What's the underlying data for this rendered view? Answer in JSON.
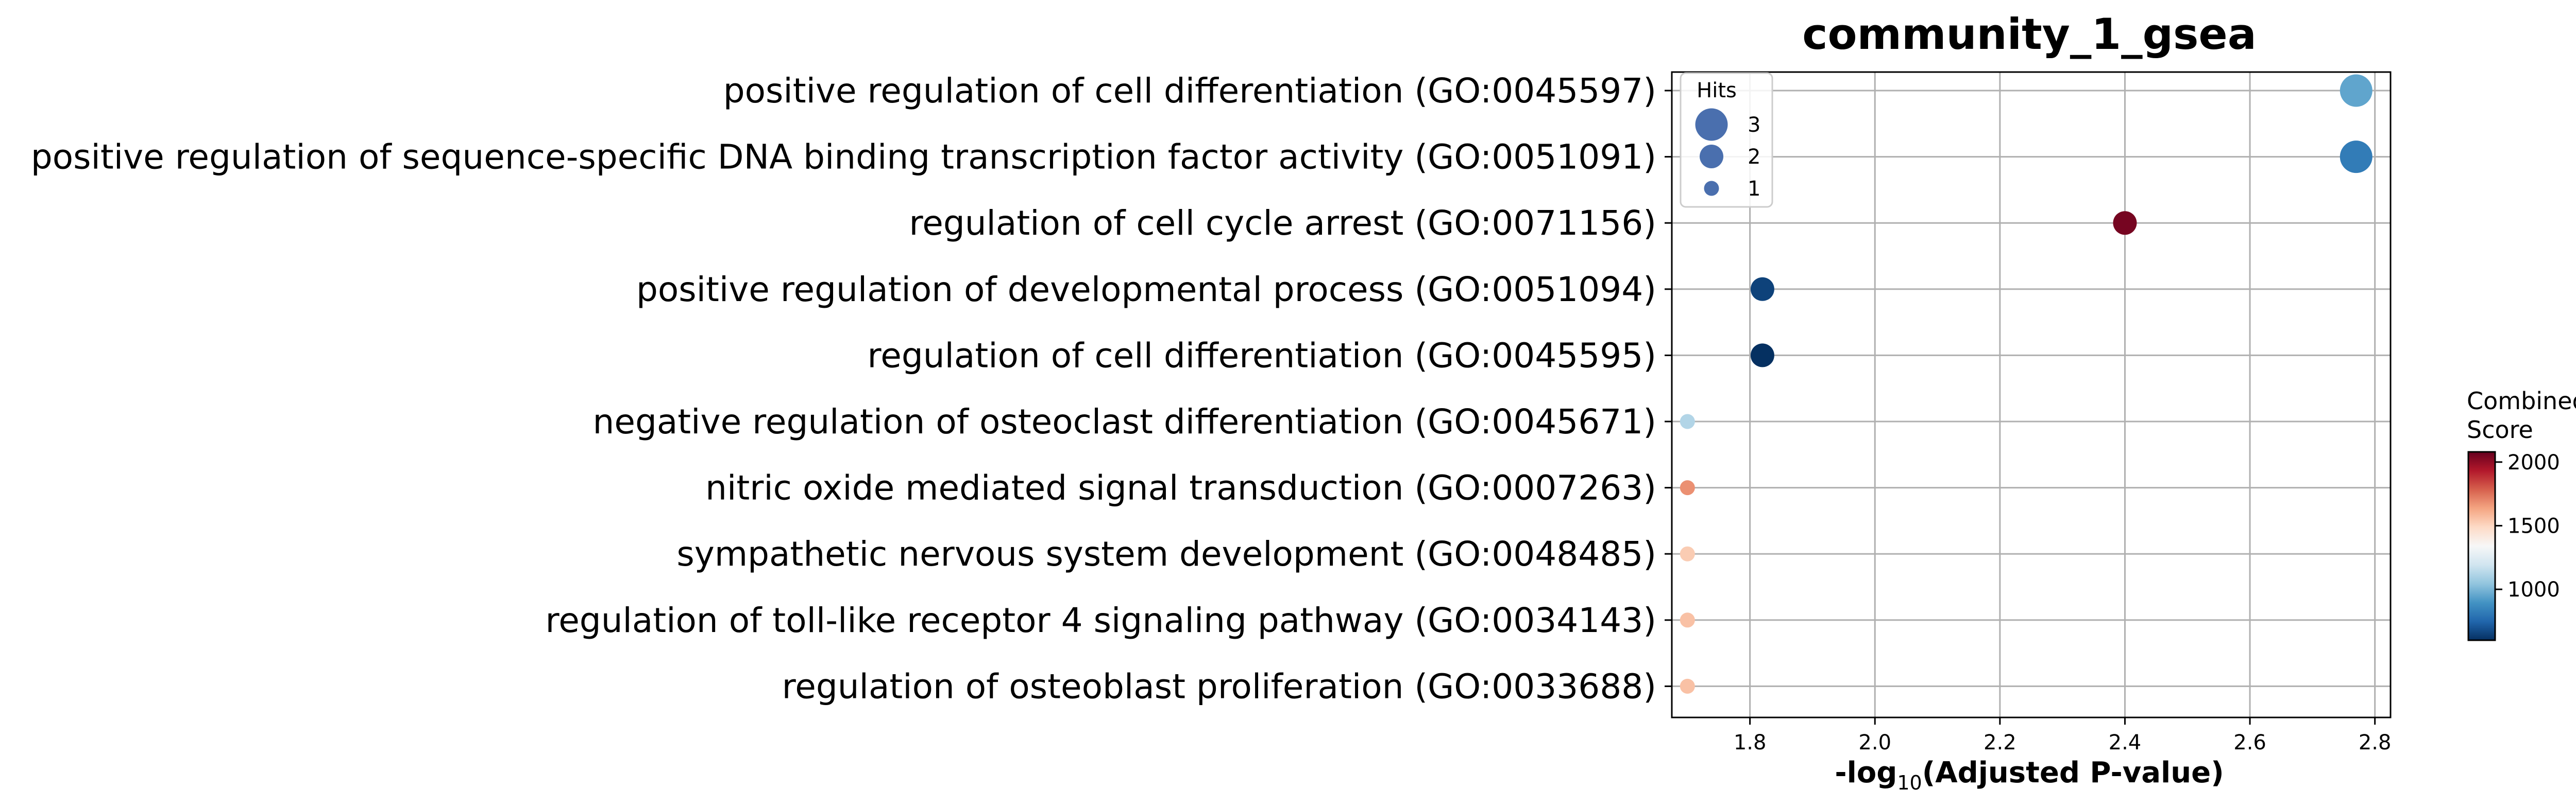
{
  "chart_data": {
    "type": "scatter",
    "title": "community_1_gsea",
    "xlabel_prefix": "-log",
    "xlabel_sub": "10",
    "xlabel_suffix": "(Adjusted P-value)",
    "ylabel": "",
    "xlim": [
      1.675,
      2.825
    ],
    "xticks": [
      1.8,
      2.0,
      2.2,
      2.4,
      2.6,
      2.8
    ],
    "xtick_labels": [
      "1.8",
      "2.0",
      "2.2",
      "2.4",
      "2.6",
      "2.8"
    ],
    "grid": true,
    "categories": [
      "positive regulation of cell differentiation (GO:0045597)",
      "positive regulation of sequence-specific DNA binding transcription factor activity (GO:0051091)",
      "regulation of cell cycle arrest (GO:0071156)",
      "positive regulation of developmental process (GO:0051094)",
      "regulation of cell differentiation (GO:0045595)",
      "negative regulation of osteoclast differentiation (GO:0045671)",
      "nitric oxide mediated signal transduction (GO:0007263)",
      "sympathetic nervous system development (GO:0048485)",
      "regulation of toll-like receptor 4 signaling pathway (GO:0034143)",
      "regulation of osteoblast proliferation (GO:0033688)"
    ],
    "points": [
      {
        "x": 2.77,
        "hits": 3,
        "score": 950
      },
      {
        "x": 2.77,
        "hits": 3,
        "score": 820
      },
      {
        "x": 2.4,
        "hits": 2,
        "score": 2050
      },
      {
        "x": 1.82,
        "hits": 2,
        "score": 650
      },
      {
        "x": 1.82,
        "hits": 2,
        "score": 600
      },
      {
        "x": 1.7,
        "hits": 1,
        "score": 1120
      },
      {
        "x": 1.7,
        "hits": 1,
        "score": 1680
      },
      {
        "x": 1.7,
        "hits": 1,
        "score": 1530
      },
      {
        "x": 1.7,
        "hits": 1,
        "score": 1560
      },
      {
        "x": 1.7,
        "hits": 1,
        "score": 1560
      }
    ],
    "legend": {
      "title": "Hits",
      "entries": [
        {
          "label": "3",
          "hits": 3
        },
        {
          "label": "2",
          "hits": 2
        },
        {
          "label": "1",
          "hits": 1
        }
      ],
      "placement": "top-left",
      "marker_color": "#4a6fae"
    },
    "colorbar": {
      "title_line1": "Combined",
      "title_line2": "Score",
      "range": [
        600,
        2080
      ],
      "ticks": [
        1000,
        1500,
        2000
      ],
      "tick_labels": [
        "1000",
        "1500",
        "2000"
      ],
      "colormap": "RdBu_r"
    }
  }
}
